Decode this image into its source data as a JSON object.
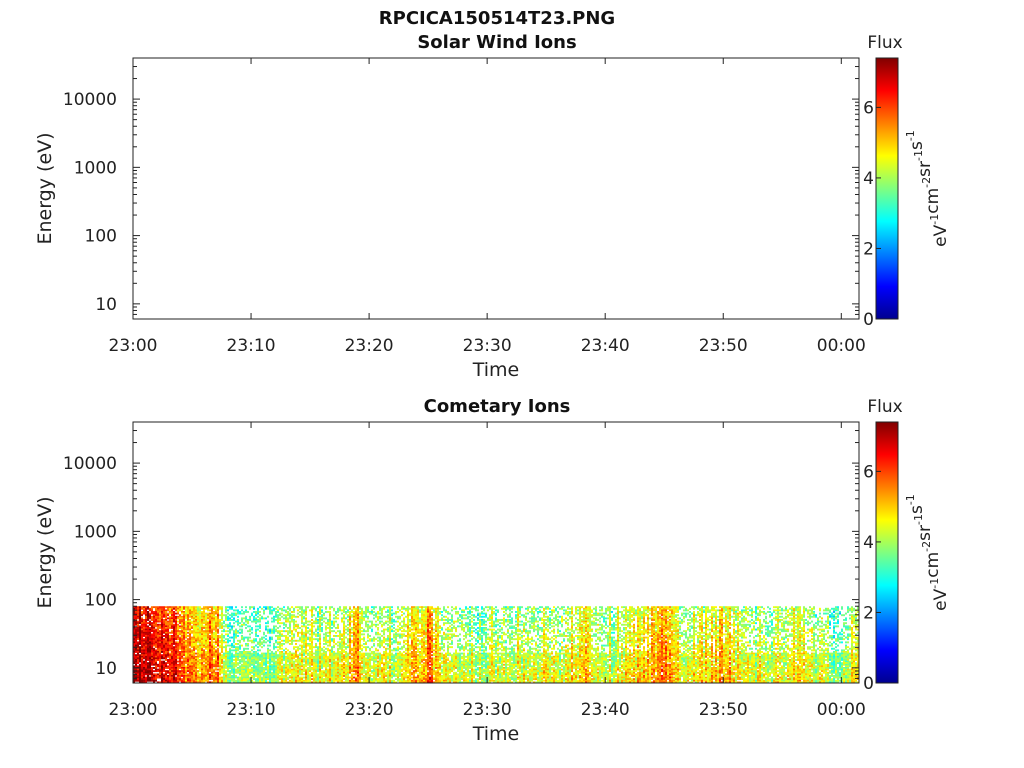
{
  "chart_data": [
    {
      "type": "heatmap",
      "title": "RPCICA150514T23.PNG",
      "subtitle": "Solar Wind Ions",
      "xlabel": "Time",
      "ylabel": "Energy (eV)",
      "x_ticks": [
        "23:00",
        "23:10",
        "23:20",
        "23:30",
        "23:40",
        "23:50",
        "00:00"
      ],
      "y_ticks": [
        "10",
        "100",
        "1000",
        "10000"
      ],
      "y_scale": "log",
      "ylim": [
        6,
        40000
      ],
      "xlim_minutes": [
        0,
        61.5
      ],
      "colorbar": {
        "title": "Flux",
        "unit_base": [
          "eV",
          "cm",
          "sr",
          "s"
        ],
        "unit_exp": [
          "-1",
          "-2",
          "-1",
          "-1"
        ],
        "ticks": [
          "0",
          "2",
          "4",
          "6"
        ],
        "range": [
          0,
          7.4
        ],
        "colormap": "jet"
      },
      "data_present": false
    },
    {
      "type": "heatmap",
      "title": "Cometary Ions",
      "xlabel": "Time",
      "ylabel": "Energy (eV)",
      "x_ticks": [
        "23:00",
        "23:10",
        "23:20",
        "23:30",
        "23:40",
        "23:50",
        "00:00"
      ],
      "y_ticks": [
        "10",
        "100",
        "1000",
        "10000"
      ],
      "y_scale": "log",
      "ylim": [
        6,
        40000
      ],
      "xlim_minutes": [
        0,
        61.5
      ],
      "colorbar": {
        "title": "Flux",
        "unit_base": [
          "eV",
          "cm",
          "sr",
          "s"
        ],
        "unit_exp": [
          "-1",
          "-2",
          "-1",
          "-1"
        ],
        "ticks": [
          "0",
          "2",
          "4",
          "6"
        ],
        "range": [
          0,
          7.4
        ],
        "colormap": "jet"
      },
      "data_present": true,
      "energy_max_ev": 80,
      "flux_profile": {
        "minutes": [
          0,
          1,
          2,
          3,
          4,
          5,
          6,
          7,
          8,
          10,
          12,
          14,
          16,
          18,
          19,
          20,
          22,
          24,
          25,
          26,
          28,
          30,
          32,
          34,
          36,
          38,
          40,
          42,
          44,
          45,
          46,
          48,
          50,
          52,
          54,
          56,
          58,
          60,
          61.5
        ],
        "flux": [
          6.5,
          6.8,
          6.3,
          6.0,
          5.4,
          4.8,
          4.9,
          5.2,
          3.2,
          3.0,
          3.3,
          4.0,
          3.6,
          4.2,
          5.0,
          3.4,
          3.8,
          4.4,
          5.0,
          3.6,
          3.4,
          3.8,
          3.7,
          4.0,
          3.5,
          4.2,
          3.6,
          4.0,
          4.4,
          5.0,
          4.2,
          3.9,
          4.6,
          3.8,
          3.5,
          4.3,
          3.6,
          3.2,
          4.2
        ]
      }
    }
  ]
}
